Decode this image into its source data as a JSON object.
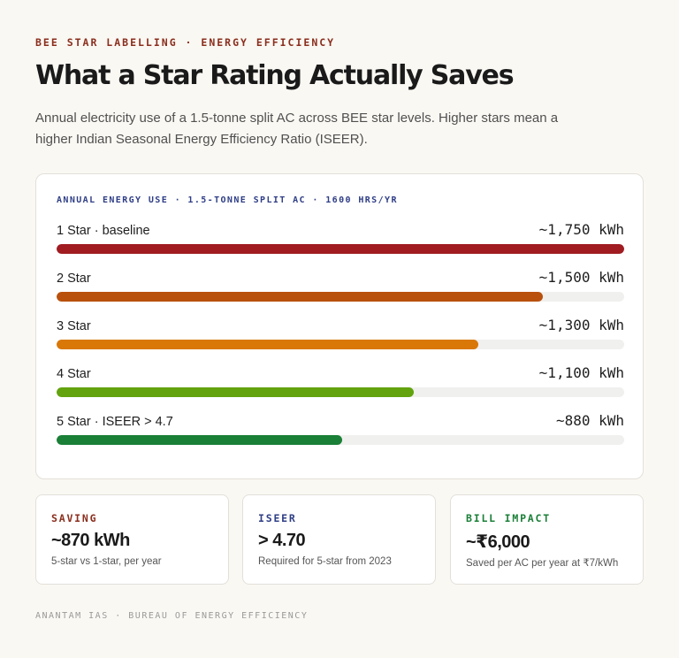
{
  "header": {
    "kicker": "BEE STAR LABELLING · ENERGY EFFICIENCY",
    "title": "What a Star Rating Actually Saves",
    "subtitle": "Annual electricity use of a 1.5-tonne split AC across BEE star levels. Higher stars mean a higher Indian Seasonal Energy Efficiency Ratio (ISEER)."
  },
  "chart_data": {
    "type": "bar",
    "orientation": "horizontal",
    "title": "ANNUAL ENERGY USE · 1.5-TONNE SPLIT AC · 1600 HRS/YR",
    "categories": [
      "1 Star · baseline",
      "2 Star",
      "3 Star",
      "4 Star",
      "5 Star · ISEER > 4.7"
    ],
    "values": [
      1750,
      1500,
      1300,
      1100,
      880
    ],
    "value_labels": [
      "~1,750 kWh",
      "~1,500 kWh",
      "~1,300 kWh",
      "~1,100 kWh",
      "~880 kWh"
    ],
    "colors": [
      "#a01c21",
      "#b9510d",
      "#d97707",
      "#62a30e",
      "#1a7f37"
    ],
    "unit": "kWh",
    "xlim": [
      0,
      1750
    ],
    "grid": false,
    "legend": "none"
  },
  "cards": [
    {
      "label": "SAVING",
      "value": "~870 kWh",
      "note": "5-star vs 1-star, per year",
      "color": "#8a2e1d"
    },
    {
      "label": "ISEER",
      "value": "> 4.70",
      "note": "Required for 5-star from 2023",
      "color": "#2f3e86"
    },
    {
      "label": "BILL IMPACT",
      "value": "~₹6,000",
      "note": "Saved per AC per year at ₹7/kWh",
      "color": "#1a7f37"
    }
  ],
  "footer": {
    "text": "ANANTAM IAS · BUREAU OF ENERGY EFFICIENCY"
  }
}
